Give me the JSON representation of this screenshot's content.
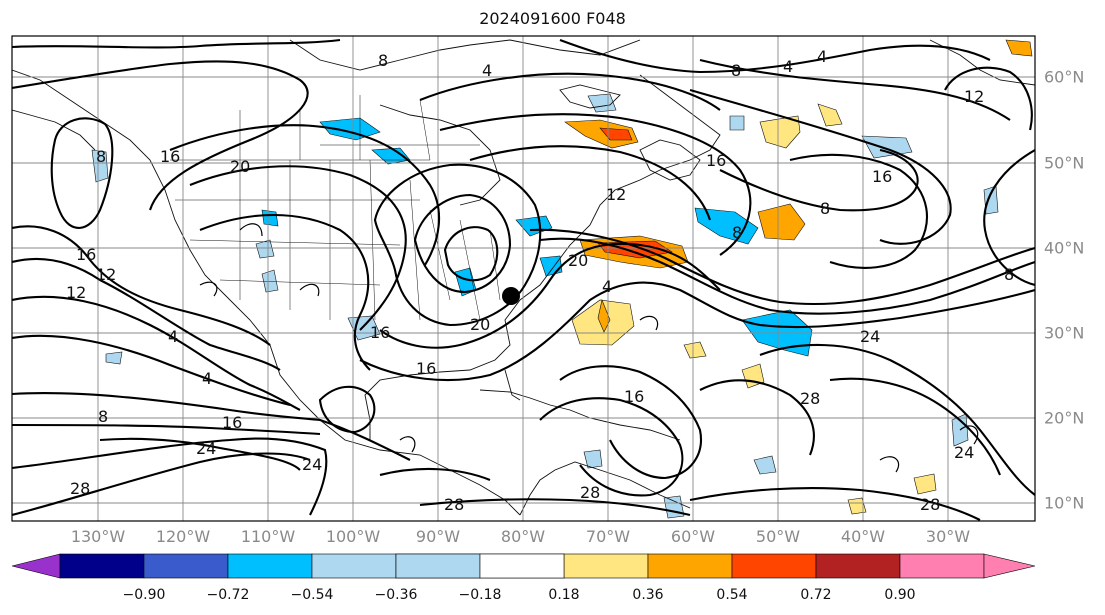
{
  "title": "2024091600 F048",
  "longitude_labels": [
    "130°W",
    "120°W",
    "110°W",
    "100°W",
    "90°W",
    "80°W",
    "70°W",
    "60°W",
    "50°W",
    "40°W",
    "30°W"
  ],
  "latitude_labels": [
    "60°N",
    "50°N",
    "40°N",
    "30°N",
    "20°N",
    "10°N"
  ],
  "colorbar": {
    "tick_labels": [
      "−0.90",
      "−0.72",
      "−0.54",
      "−0.36",
      "−0.18",
      "0.18",
      "0.36",
      "0.54",
      "0.72",
      "0.90"
    ],
    "colors": [
      "#9932cc",
      "#00008b",
      "#3a5bcc",
      "#00bfff",
      "#add8f0",
      "#ffffff",
      "#ffe680",
      "#ffa500",
      "#ff4500",
      "#b22222",
      "#ff7fb0"
    ]
  },
  "contour_labels": [
    {
      "text": "8"
    },
    {
      "text": "4"
    },
    {
      "text": "4"
    },
    {
      "text": "8"
    },
    {
      "text": "12"
    },
    {
      "text": "8"
    },
    {
      "text": "16"
    },
    {
      "text": "20"
    },
    {
      "text": "16"
    },
    {
      "text": "16"
    },
    {
      "text": "12"
    },
    {
      "text": "12"
    },
    {
      "text": "16"
    },
    {
      "text": "8"
    },
    {
      "text": "12"
    },
    {
      "text": "8"
    },
    {
      "text": "20"
    },
    {
      "text": "4"
    },
    {
      "text": "24"
    },
    {
      "text": "16"
    },
    {
      "text": "4"
    },
    {
      "text": "16"
    },
    {
      "text": "4"
    },
    {
      "text": "20"
    },
    {
      "text": "16"
    },
    {
      "text": "28"
    },
    {
      "text": "16"
    },
    {
      "text": "24"
    },
    {
      "text": "24"
    },
    {
      "text": "28"
    },
    {
      "text": "28"
    },
    {
      "text": "28"
    },
    {
      "text": "24"
    },
    {
      "text": "28"
    },
    {
      "text": "8"
    },
    {
      "text": "8"
    },
    {
      "text": "4"
    }
  ]
}
